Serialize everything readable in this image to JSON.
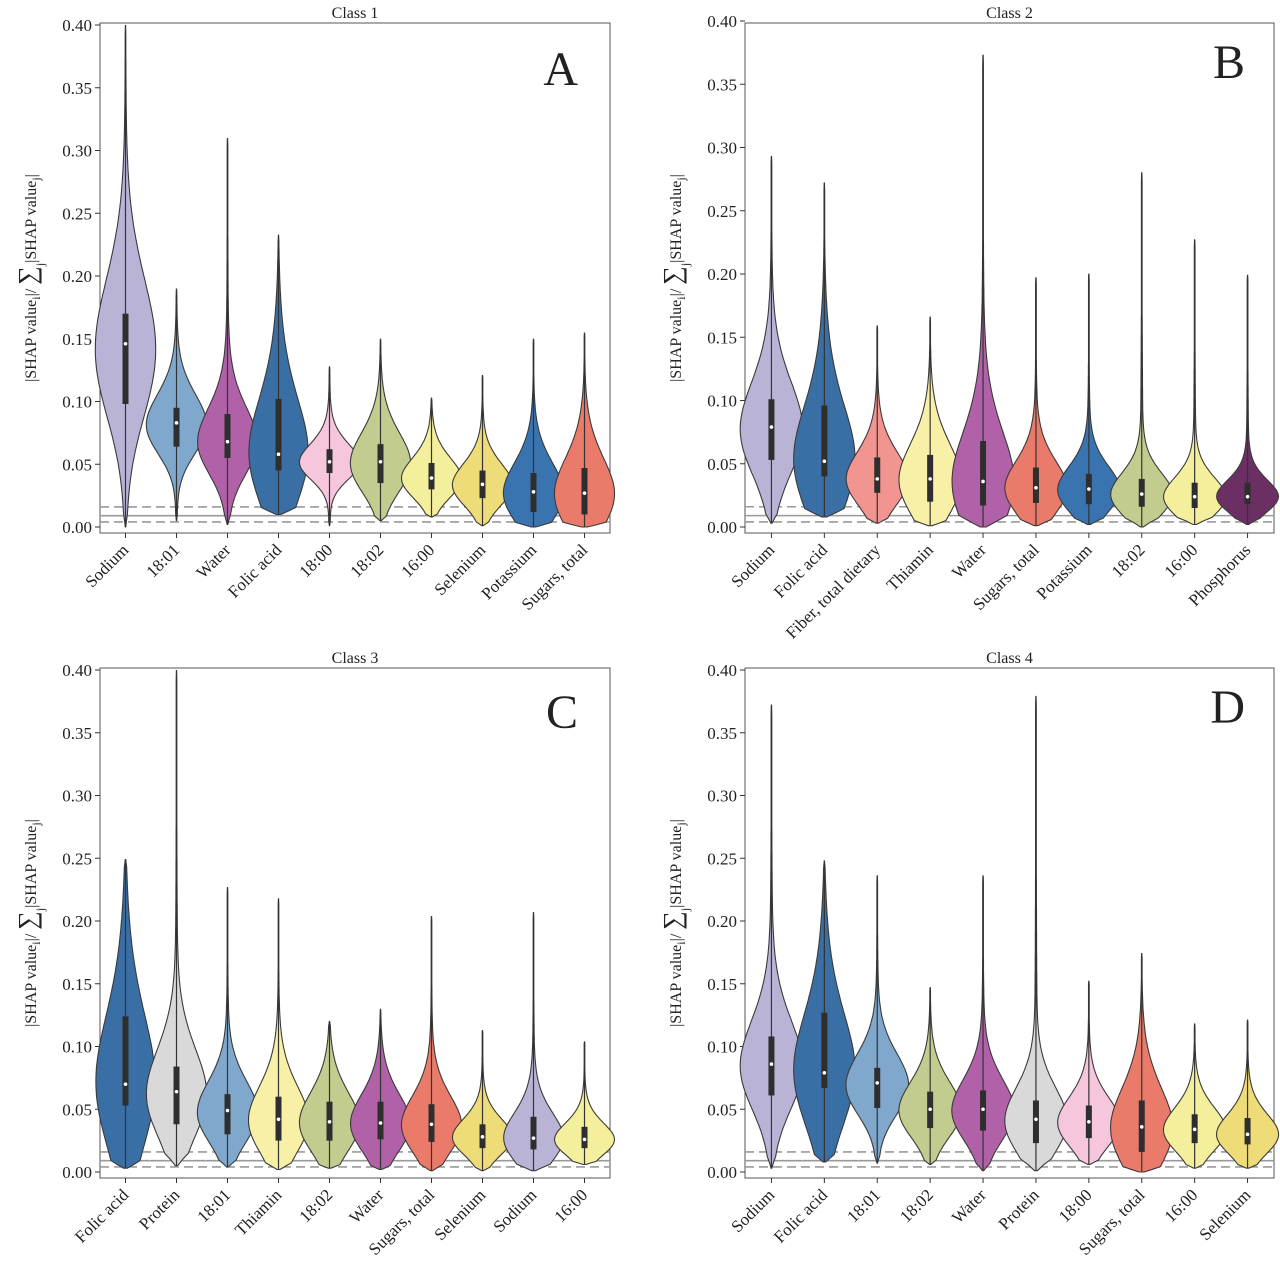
{
  "figure": {
    "ylabel_main": "|SHAP value",
    "ylabel_sub_i": "i",
    "ylabel_mid": "|/ ",
    "ylabel_sum": "∑",
    "ylabel_sum_index": "j",
    "ylabel_tail": "|SHAP value",
    "ylabel_sub_j": "j",
    "ylabel_end": "|"
  },
  "colors": {
    "Sodium": "#b9b4d6",
    "18:01": "#7fa8cc",
    "Water": "#b061a8",
    "Folic acid": "#3a6fa6",
    "18:00": "#f6c6dd",
    "18:02": "#c2cc8f",
    "16:00": "#f4ef9c",
    "Selenium": "#eedc78",
    "Potassium": "#3a74b0",
    "Sugars, total": "#ea7b6a",
    "Fiber, total dietary": "#f2948f",
    "Thiamin": "#f7f0a6",
    "Phosphorus": "#6b2f63",
    "Protein": "#d9d9d9"
  },
  "chart_data": [
    {
      "type": "violin",
      "title": "Class 1",
      "panel_label": "A",
      "xlabel": "",
      "ylim": [
        0,
        0.4
      ],
      "yticks": [
        "0.00",
        "0.05",
        "0.10",
        "0.15",
        "0.20",
        "0.25",
        "0.30",
        "0.35",
        "0.40"
      ],
      "reference_lines": [
        0.004,
        0.009,
        0.016
      ],
      "categories": [
        "Sodium",
        "18:01",
        "Water",
        "Folic acid",
        "18:00",
        "18:02",
        "16:00",
        "Selenium",
        "Potassium",
        "Sugars, total"
      ],
      "stats": [
        {
          "min": 0.0,
          "q1": 0.098,
          "median": 0.146,
          "q3": 0.17,
          "max": 0.4
        },
        {
          "min": 0.005,
          "q1": 0.064,
          "median": 0.083,
          "q3": 0.095,
          "max": 0.19
        },
        {
          "min": 0.002,
          "q1": 0.055,
          "median": 0.068,
          "q3": 0.09,
          "max": 0.31
        },
        {
          "min": 0.01,
          "q1": 0.045,
          "median": 0.058,
          "q3": 0.102,
          "max": 0.233
        },
        {
          "min": 0.001,
          "q1": 0.043,
          "median": 0.052,
          "q3": 0.062,
          "max": 0.128
        },
        {
          "min": 0.005,
          "q1": 0.035,
          "median": 0.052,
          "q3": 0.066,
          "max": 0.15
        },
        {
          "min": 0.008,
          "q1": 0.03,
          "median": 0.039,
          "q3": 0.051,
          "max": 0.103
        },
        {
          "min": 0.001,
          "q1": 0.023,
          "median": 0.034,
          "q3": 0.045,
          "max": 0.121
        },
        {
          "min": 0.0,
          "q1": 0.012,
          "median": 0.028,
          "q3": 0.043,
          "max": 0.15
        },
        {
          "min": 0.0,
          "q1": 0.01,
          "median": 0.027,
          "q3": 0.047,
          "max": 0.155
        }
      ]
    },
    {
      "type": "violin",
      "title": "Class 2",
      "panel_label": "B",
      "xlabel": "",
      "ylim": [
        0,
        0.4
      ],
      "yticks": [
        "0.00",
        "0.05",
        "0.10",
        "0.15",
        "0.20",
        "0.25",
        "0.30",
        "0.35",
        "0.40"
      ],
      "reference_lines": [
        0.004,
        0.009,
        0.016
      ],
      "categories": [
        "Sodium",
        "Folic acid",
        "Fiber, total dietary",
        "Thiamin",
        "Water",
        "Sugars, total",
        "Potassium",
        "18:02",
        "16:00",
        "Phosphorus"
      ],
      "stats": [
        {
          "min": 0.003,
          "q1": 0.053,
          "median": 0.079,
          "q3": 0.101,
          "max": 0.293
        },
        {
          "min": 0.008,
          "q1": 0.04,
          "median": 0.052,
          "q3": 0.096,
          "max": 0.272
        },
        {
          "min": 0.003,
          "q1": 0.027,
          "median": 0.038,
          "q3": 0.055,
          "max": 0.159
        },
        {
          "min": 0.001,
          "q1": 0.02,
          "median": 0.038,
          "q3": 0.057,
          "max": 0.166
        },
        {
          "min": 0.0,
          "q1": 0.017,
          "median": 0.036,
          "q3": 0.068,
          "max": 0.373
        },
        {
          "min": 0.001,
          "q1": 0.019,
          "median": 0.031,
          "q3": 0.047,
          "max": 0.197
        },
        {
          "min": 0.002,
          "q1": 0.018,
          "median": 0.03,
          "q3": 0.042,
          "max": 0.2
        },
        {
          "min": 0.0,
          "q1": 0.016,
          "median": 0.026,
          "q3": 0.038,
          "max": 0.28
        },
        {
          "min": 0.002,
          "q1": 0.015,
          "median": 0.024,
          "q3": 0.035,
          "max": 0.227
        },
        {
          "min": 0.002,
          "q1": 0.018,
          "median": 0.024,
          "q3": 0.035,
          "max": 0.199
        }
      ]
    },
    {
      "type": "violin",
      "title": "Class 3",
      "panel_label": "C",
      "xlabel": "",
      "ylim": [
        0,
        0.4
      ],
      "yticks": [
        "0.00",
        "0.05",
        "0.10",
        "0.15",
        "0.20",
        "0.25",
        "0.30",
        "0.35",
        "0.40"
      ],
      "reference_lines": [
        0.004,
        0.009,
        0.016
      ],
      "categories": [
        "Folic acid",
        "Protein",
        "18:01",
        "Thiamin",
        "18:02",
        "Water",
        "Sugars, total",
        "Selenium",
        "Sodium",
        "16:00"
      ],
      "stats": [
        {
          "min": 0.003,
          "q1": 0.053,
          "median": 0.07,
          "q3": 0.124,
          "max": 0.249
        },
        {
          "min": 0.005,
          "q1": 0.038,
          "median": 0.064,
          "q3": 0.084,
          "max": 0.4
        },
        {
          "min": 0.004,
          "q1": 0.03,
          "median": 0.049,
          "q3": 0.062,
          "max": 0.227
        },
        {
          "min": 0.002,
          "q1": 0.025,
          "median": 0.042,
          "q3": 0.06,
          "max": 0.218
        },
        {
          "min": 0.003,
          "q1": 0.025,
          "median": 0.04,
          "q3": 0.056,
          "max": 0.12
        },
        {
          "min": 0.002,
          "q1": 0.026,
          "median": 0.039,
          "q3": 0.056,
          "max": 0.13
        },
        {
          "min": 0.001,
          "q1": 0.024,
          "median": 0.038,
          "q3": 0.054,
          "max": 0.204
        },
        {
          "min": 0.001,
          "q1": 0.019,
          "median": 0.028,
          "q3": 0.038,
          "max": 0.113
        },
        {
          "min": 0.001,
          "q1": 0.018,
          "median": 0.027,
          "q3": 0.044,
          "max": 0.207
        },
        {
          "min": 0.006,
          "q1": 0.019,
          "median": 0.026,
          "q3": 0.036,
          "max": 0.104
        }
      ]
    },
    {
      "type": "violin",
      "title": "Class 4",
      "panel_label": "D",
      "xlabel": "",
      "ylim": [
        0,
        0.4
      ],
      "yticks": [
        "0.00",
        "0.05",
        "0.10",
        "0.15",
        "0.20",
        "0.25",
        "0.30",
        "0.35",
        "0.40"
      ],
      "reference_lines": [
        0.004,
        0.009,
        0.016
      ],
      "categories": [
        "Sodium",
        "Folic acid",
        "18:01",
        "18:02",
        "Water",
        "Protein",
        "18:00",
        "Sugars, total",
        "16:00",
        "Selenium"
      ],
      "stats": [
        {
          "min": 0.003,
          "q1": 0.061,
          "median": 0.086,
          "q3": 0.108,
          "max": 0.372
        },
        {
          "min": 0.008,
          "q1": 0.067,
          "median": 0.079,
          "q3": 0.127,
          "max": 0.248
        },
        {
          "min": 0.007,
          "q1": 0.051,
          "median": 0.071,
          "q3": 0.083,
          "max": 0.236
        },
        {
          "min": 0.006,
          "q1": 0.035,
          "median": 0.05,
          "q3": 0.064,
          "max": 0.147
        },
        {
          "min": 0.001,
          "q1": 0.033,
          "median": 0.05,
          "q3": 0.065,
          "max": 0.236
        },
        {
          "min": 0.001,
          "q1": 0.023,
          "median": 0.042,
          "q3": 0.057,
          "max": 0.379
        },
        {
          "min": 0.006,
          "q1": 0.027,
          "median": 0.04,
          "q3": 0.053,
          "max": 0.152
        },
        {
          "min": 0.0,
          "q1": 0.016,
          "median": 0.036,
          "q3": 0.057,
          "max": 0.174
        },
        {
          "min": 0.003,
          "q1": 0.023,
          "median": 0.034,
          "q3": 0.046,
          "max": 0.118
        },
        {
          "min": 0.003,
          "q1": 0.022,
          "median": 0.03,
          "q3": 0.043,
          "max": 0.121
        }
      ]
    }
  ]
}
